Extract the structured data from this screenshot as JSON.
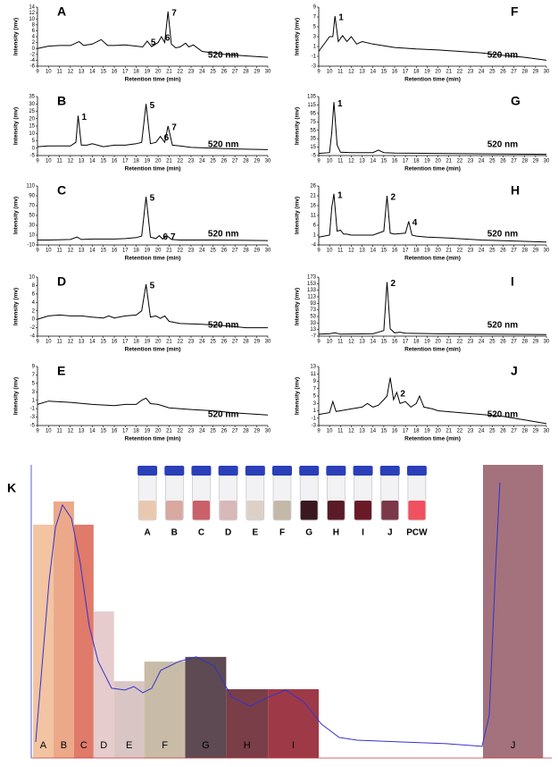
{
  "chart_data": [
    {
      "type": "line",
      "panel": "A",
      "ylabel": "Intensity (mv)",
      "xlabel": "Retention time (min)",
      "wavelength": "520 nm",
      "color": "#000000",
      "xlim": [
        9,
        30
      ],
      "xticks": [
        9,
        10,
        11,
        12,
        13,
        14,
        15,
        16,
        17,
        18,
        19,
        20,
        21,
        22,
        23,
        24,
        25,
        26,
        27,
        28,
        29,
        30
      ],
      "ylim": [
        -6,
        14
      ],
      "yticks": [
        -6,
        -4,
        -2,
        0,
        2,
        4,
        6,
        8,
        10,
        12,
        14
      ],
      "x": [
        9,
        10,
        11,
        12,
        12.8,
        13.2,
        14,
        14.8,
        15.4,
        16,
        17,
        18,
        18.6,
        19,
        19.4,
        20,
        20.3,
        20.6,
        20.9,
        21.2,
        21.6,
        22,
        22.5,
        22.8,
        23.2,
        24,
        26,
        28,
        30
      ],
      "values": [
        0,
        0.8,
        1,
        1,
        2.3,
        1,
        1.5,
        3,
        1,
        1,
        1.2,
        0.8,
        0.5,
        2.5,
        0.6,
        2,
        4,
        2,
        12.5,
        1.5,
        0.2,
        0.5,
        1.8,
        0.5,
        1.2,
        -1,
        -2,
        -2.5,
        -3
      ],
      "peaks": [
        {
          "label": "5",
          "time": 19
        },
        {
          "label": "6",
          "time": 20.3
        },
        {
          "label": "7",
          "time": 20.9
        }
      ]
    },
    {
      "type": "line",
      "panel": "B",
      "ylabel": "Intensity (mv)",
      "xlabel": "Retention time (min)",
      "wavelength": "520 nm",
      "color": "#000000",
      "xlim": [
        9,
        30
      ],
      "xticks": [
        9,
        10,
        11,
        12,
        13,
        14,
        15,
        16,
        17,
        18,
        19,
        20,
        21,
        22,
        23,
        24,
        25,
        26,
        27,
        28,
        29,
        30
      ],
      "ylim": [
        -5,
        35
      ],
      "yticks": [
        -5,
        0,
        5,
        10,
        15,
        20,
        25,
        30,
        35
      ],
      "x": [
        9,
        10,
        11,
        12,
        12.5,
        12.7,
        13,
        13.5,
        14,
        15,
        16,
        17,
        18,
        18.5,
        18.9,
        19.3,
        19.8,
        20.2,
        20.6,
        20.9,
        21.3,
        22,
        23,
        25,
        27,
        30
      ],
      "values": [
        1,
        1.5,
        1.5,
        1.5,
        4,
        22,
        2,
        2,
        3,
        1,
        2,
        2,
        3,
        4,
        30,
        3,
        4,
        8,
        4,
        15,
        2,
        1.5,
        0.5,
        0,
        -0.5,
        -1
      ],
      "peaks": [
        {
          "label": "1",
          "time": 12.7
        },
        {
          "label": "5",
          "time": 18.9
        },
        {
          "label": "6",
          "time": 20.2
        },
        {
          "label": "7",
          "time": 20.9
        }
      ]
    },
    {
      "type": "line",
      "panel": "C",
      "ylabel": "Intensity (mv)",
      "xlabel": "Retention time (min)",
      "wavelength": "520 nm",
      "color": "#000000",
      "xlim": [
        9,
        30
      ],
      "xticks": [
        9,
        10,
        11,
        12,
        13,
        14,
        15,
        16,
        17,
        18,
        19,
        20,
        21,
        22,
        23,
        24,
        25,
        26,
        27,
        28,
        29,
        30
      ],
      "ylim": [
        -10,
        110
      ],
      "yticks": [
        -10,
        10,
        30,
        50,
        70,
        90,
        110
      ],
      "x": [
        9,
        10,
        12,
        12.6,
        13,
        14,
        16,
        17,
        18,
        18.5,
        18.9,
        19.3,
        19.8,
        20.1,
        20.4,
        20.8,
        21.2,
        22,
        25,
        30
      ],
      "values": [
        0,
        0,
        1,
        6,
        1,
        2,
        2,
        3,
        5,
        8,
        88,
        6,
        3,
        9,
        2,
        9,
        1,
        0,
        0,
        -1
      ],
      "peaks": [
        {
          "label": "5",
          "time": 18.9
        },
        {
          "label": "6",
          "time": 20.1
        },
        {
          "label": "7",
          "time": 20.8
        }
      ]
    },
    {
      "type": "line",
      "panel": "D",
      "ylabel": "Intensity (mv)",
      "xlabel": "Retention time (min)",
      "wavelength": "520 nm",
      "color": "#000000",
      "xlim": [
        9,
        30
      ],
      "xticks": [
        9,
        10,
        11,
        12,
        13,
        14,
        15,
        16,
        17,
        18,
        19,
        20,
        21,
        22,
        23,
        24,
        25,
        26,
        27,
        28,
        29,
        30
      ],
      "ylim": [
        -4,
        10
      ],
      "yticks": [
        -4,
        -2,
        0,
        2,
        4,
        6,
        8,
        10
      ],
      "x": [
        9,
        10,
        11,
        12,
        13,
        14,
        15,
        15.5,
        16,
        17,
        18,
        18.5,
        18.9,
        19.3,
        19.8,
        20.2,
        20.6,
        21,
        22,
        24,
        26,
        28,
        30
      ],
      "values": [
        0,
        0.8,
        1,
        0.8,
        0.8,
        0.5,
        0.3,
        0.8,
        0.3,
        0.8,
        1,
        2,
        8.3,
        0.5,
        0.8,
        0.2,
        0.8,
        -0.5,
        -1,
        -1.2,
        -1.5,
        -2,
        -2
      ],
      "peaks": [
        {
          "label": "5",
          "time": 18.9
        }
      ]
    },
    {
      "type": "line",
      "panel": "E",
      "ylabel": "Intensity (mv)",
      "xlabel": "Retention time (min)",
      "wavelength": "520 nm",
      "color": "#000000",
      "xlim": [
        9,
        30
      ],
      "xticks": [
        9,
        10,
        11,
        12,
        13,
        14,
        15,
        16,
        17,
        18,
        19,
        20,
        21,
        22,
        23,
        24,
        25,
        26,
        27,
        28,
        29,
        30
      ],
      "ylim": [
        -5,
        9
      ],
      "yticks": [
        -5,
        -3,
        -1,
        1,
        3,
        5,
        7,
        9
      ],
      "x": [
        9,
        10,
        12,
        14,
        16,
        17,
        18,
        18.5,
        18.9,
        19.3,
        20,
        21,
        23,
        25,
        27,
        30
      ],
      "values": [
        0,
        0.8,
        0.5,
        0,
        -0.3,
        0,
        0,
        1,
        1.5,
        0.2,
        0,
        -0.8,
        -1.2,
        -1.5,
        -2,
        -2.5
      ],
      "peaks": []
    },
    {
      "type": "line",
      "panel": "F",
      "ylabel": "Intensity (mv)",
      "xlabel": "Retention time (min)",
      "wavelength": "520 nm",
      "color": "#000000",
      "xlim": [
        9,
        30
      ],
      "xticks": [
        9,
        10,
        11,
        12,
        13,
        14,
        15,
        16,
        17,
        18,
        19,
        20,
        21,
        22,
        23,
        24,
        25,
        26,
        27,
        28,
        29,
        30
      ],
      "ylim": [
        -3,
        9
      ],
      "yticks": [
        -3,
        -1,
        1,
        3,
        5,
        7,
        9
      ],
      "x": [
        9,
        10,
        10.3,
        10.5,
        10.8,
        11.2,
        11.6,
        12,
        12.5,
        13,
        14,
        16,
        18,
        20,
        22,
        24,
        26,
        28,
        30
      ],
      "values": [
        0,
        3,
        3,
        7.2,
        2,
        3.2,
        2,
        3,
        1.5,
        2,
        1.5,
        0.8,
        0.5,
        0.3,
        0,
        -0.3,
        -0.8,
        -1.2,
        -1.8
      ],
      "peaks": [
        {
          "label": "1",
          "time": 10.5
        }
      ]
    },
    {
      "type": "line",
      "panel": "G",
      "ylabel": "Intensity (mv)",
      "xlabel": "Retention time (min)",
      "wavelength": "520 nm",
      "color": "#000000",
      "xlim": [
        9,
        30
      ],
      "xticks": [
        9,
        10,
        11,
        12,
        13,
        14,
        15,
        16,
        17,
        18,
        19,
        20,
        21,
        22,
        23,
        24,
        25,
        26,
        27,
        28,
        29,
        30
      ],
      "ylim": [
        -5,
        135
      ],
      "yticks": [
        -5,
        15,
        35,
        55,
        75,
        95,
        115,
        135
      ],
      "x": [
        9,
        10,
        10.2,
        10.4,
        10.7,
        11,
        12,
        14,
        14.5,
        15,
        16,
        20,
        25,
        30
      ],
      "values": [
        0,
        2,
        50,
        122,
        20,
        3,
        2,
        2,
        8,
        2,
        1,
        0,
        -1,
        -2
      ],
      "peaks": [
        {
          "label": "1",
          "time": 10.4
        }
      ]
    },
    {
      "type": "line",
      "panel": "H",
      "ylabel": "Intensity (mv)",
      "xlabel": "Retention time (min)",
      "wavelength": "520 nm",
      "color": "#000000",
      "xlim": [
        9,
        30
      ],
      "xticks": [
        9,
        10,
        11,
        12,
        13,
        14,
        15,
        16,
        17,
        18,
        19,
        20,
        21,
        22,
        23,
        24,
        25,
        26,
        27,
        28,
        29,
        30
      ],
      "ylim": [
        -4,
        26
      ],
      "yticks": [
        -4,
        1,
        6,
        11,
        16,
        21,
        26
      ],
      "x": [
        9,
        10,
        10.2,
        10.4,
        10.7,
        11,
        11.3,
        11.6,
        12,
        13,
        14,
        15,
        15.3,
        15.6,
        16,
        17,
        17.3,
        17.6,
        18,
        19,
        21,
        24,
        27,
        30
      ],
      "values": [
        0,
        1,
        15,
        22,
        3,
        3.5,
        1.5,
        1.5,
        1,
        1,
        1,
        3,
        21,
        2,
        1.5,
        2,
        8,
        1,
        0.5,
        0,
        -0.5,
        -1.5,
        -2,
        -2.5
      ],
      "peaks": [
        {
          "label": "1",
          "time": 10.4
        },
        {
          "label": "2",
          "time": 15.3
        },
        {
          "label": "4",
          "time": 17.3
        }
      ]
    },
    {
      "type": "line",
      "panel": "I",
      "ylabel": "Intensity (mv)",
      "xlabel": "Retention time (min)",
      "wavelength": "520 nm",
      "color": "#000000",
      "xlim": [
        9,
        30
      ],
      "xticks": [
        9,
        10,
        11,
        12,
        13,
        14,
        15,
        16,
        17,
        18,
        19,
        20,
        21,
        22,
        23,
        24,
        25,
        26,
        27,
        28,
        29,
        30
      ],
      "ylim": [
        -7,
        173
      ],
      "yticks": [
        -7,
        13,
        33,
        53,
        73,
        93,
        113,
        133,
        153,
        173
      ],
      "x": [
        9,
        10,
        10.5,
        11,
        14,
        15,
        15.3,
        15.6,
        16,
        16.5,
        17,
        20,
        25,
        30
      ],
      "values": [
        -1,
        0,
        3,
        -1,
        0,
        10,
        158,
        15,
        3,
        5,
        2,
        0,
        -1,
        -2
      ],
      "peaks": [
        {
          "label": "2",
          "time": 15.3
        }
      ]
    },
    {
      "type": "line",
      "panel": "J",
      "ylabel": "Intensity (mv)",
      "xlabel": "Retention time (min)",
      "wavelength": "520 nm",
      "color": "#000000",
      "xlim": [
        9,
        30
      ],
      "xticks": [
        9,
        10,
        11,
        12,
        13,
        14,
        15,
        16,
        17,
        18,
        19,
        20,
        21,
        22,
        23,
        24,
        25,
        26,
        27,
        28,
        29,
        30
      ],
      "ylim": [
        -3,
        13
      ],
      "yticks": [
        -3,
        -1,
        1,
        3,
        5,
        7,
        9,
        11,
        13
      ],
      "x": [
        9,
        10,
        10.3,
        10.6,
        11,
        12,
        13,
        13.5,
        14,
        14.5,
        15,
        15.3,
        15.6,
        15.9,
        16.2,
        16.5,
        17,
        17.5,
        18,
        18.3,
        18.7,
        19.5,
        20,
        22,
        24,
        26,
        28,
        30
      ],
      "values": [
        0,
        0.5,
        3.5,
        0.8,
        1,
        1.5,
        2,
        3,
        2,
        2.5,
        4,
        5,
        10,
        4,
        6,
        3,
        3.5,
        2,
        3,
        5,
        2,
        1.5,
        1,
        0.5,
        0,
        -0.5,
        -1.5,
        -2.5
      ],
      "peaks": [
        {
          "label": "2",
          "time": 16.2
        }
      ]
    },
    {
      "type": "fractionation",
      "panel": "K",
      "xlim": [
        0,
        425
      ],
      "ylim": [
        0,
        100
      ],
      "categories": [
        "A",
        "B",
        "C",
        "D",
        "E",
        "F",
        "G",
        "H",
        "I",
        "J"
      ],
      "x_start": [
        1.5,
        18.4,
        35.4,
        51.6,
        68.5,
        93.6,
        127.5,
        161.4,
        196,
        374
      ],
      "x_end": [
        18.4,
        35.4,
        51.6,
        68.5,
        93.6,
        127.5,
        161.4,
        196,
        238,
        423.7
      ],
      "values": [
        79.6,
        87.5,
        79.6,
        50,
        26.2,
        32.9,
        34.5,
        23.5,
        23.5,
        100
      ],
      "colors": [
        "#f2c4a2",
        "#eba98a",
        "#e07a6a",
        "#e6cccc",
        "#d9c6c4",
        "#c8bca8",
        "#5e4a52",
        "#7a3e48",
        "#9e3a48",
        "#a3727c"
      ],
      "line": {
        "color": "#3333cc",
        "x": [
          3.7,
          14.8,
          20,
          25.9,
          33.3,
          40.6,
          48,
          55.4,
          66.5,
          77.6,
          85,
          92.4,
          99.8,
          107.2,
          122,
          136.7,
          151.5,
          166.3,
          181.1,
          195.9,
          210.6,
          225.4,
          240.2,
          255,
          269.8,
          306.7,
          343.7,
          373.2,
          379.2,
          384.3,
          388
        ],
        "values": [
          5.5,
          60.4,
          78.7,
          86.3,
          81.7,
          66.5,
          45.1,
          32.9,
          23.8,
          23.2,
          24.4,
          22.3,
          23.8,
          29.9,
          32.9,
          34.5,
          31.4,
          20.7,
          17.7,
          20.7,
          23.2,
          19.2,
          11.6,
          7,
          6.1,
          5.5,
          4.9,
          4,
          14.6,
          63.4,
          93.9
        ]
      },
      "vials": [
        "A",
        "B",
        "C",
        "D",
        "E",
        "F",
        "G",
        "H",
        "I",
        "J",
        "PCW"
      ],
      "vial_colors": [
        "#e8c9b0",
        "#d9a8a0",
        "#c9606a",
        "#d8b8b8",
        "#ddd0c8",
        "#c4b8a8",
        "#3a1820",
        "#5a1a28",
        "#6a1a26",
        "#7a3848",
        "#f05060"
      ]
    }
  ]
}
